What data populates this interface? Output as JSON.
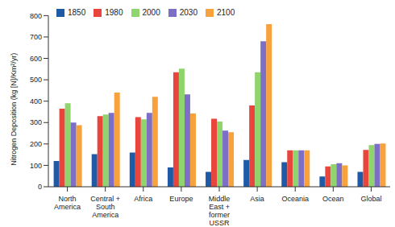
{
  "chart_data": {
    "type": "bar",
    "y_label": "Nitrogen Deposition (kg [N]/Km²/yr)",
    "categories": [
      "North America",
      "Central + South America",
      "Africa",
      "Europe",
      "Middle East + former USSR",
      "Asia",
      "Oceania",
      "Ocean",
      "Global"
    ],
    "series": [
      {
        "name": "1850",
        "color": "#1f5aa6",
        "values": [
          120,
          152,
          160,
          90,
          70,
          125,
          115,
          48,
          70
        ]
      },
      {
        "name": "1980",
        "color": "#e8453c",
        "values": [
          365,
          330,
          325,
          535,
          318,
          380,
          170,
          95,
          172
        ]
      },
      {
        "name": "2000",
        "color": "#8fd46c",
        "values": [
          390,
          338,
          315,
          552,
          305,
          535,
          170,
          105,
          195
        ]
      },
      {
        "name": "2030",
        "color": "#7d6fc6",
        "values": [
          300,
          345,
          345,
          432,
          262,
          680,
          170,
          110,
          200
        ]
      },
      {
        "name": "2100",
        "color": "#f7a23c",
        "values": [
          288,
          440,
          420,
          342,
          255,
          760,
          170,
          100,
          202
        ]
      }
    ],
    "ylim": [
      0,
      800
    ],
    "yticks": [
      0,
      100,
      200,
      300,
      400,
      500,
      600,
      700,
      800
    ],
    "legend": "upper left"
  }
}
